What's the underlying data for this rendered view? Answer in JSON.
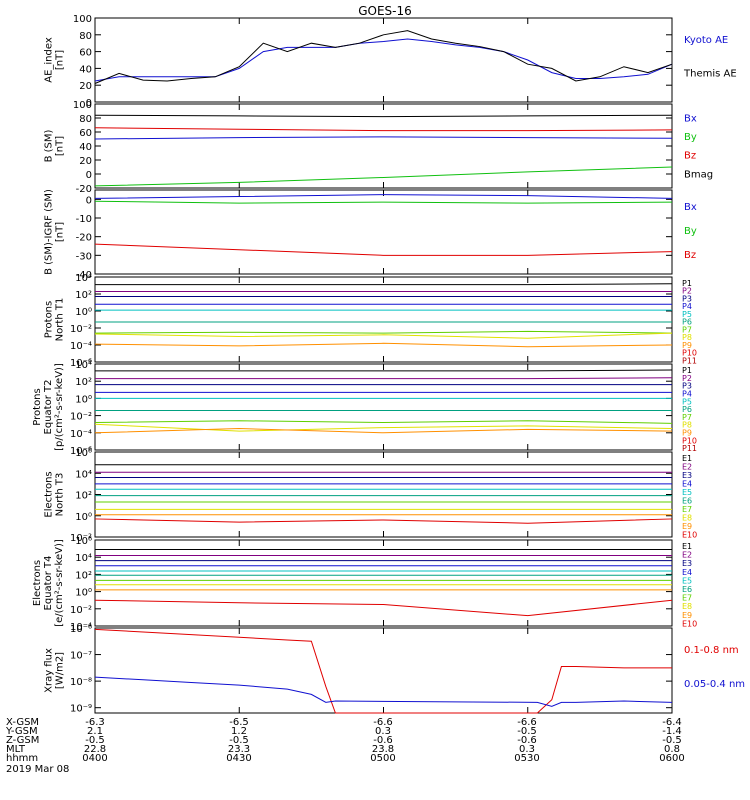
{
  "title": "GOES-16",
  "colors": {
    "black": "#000000",
    "blue": "#1010d0",
    "green": "#10c010",
    "red": "#e00000",
    "navy": "#000080",
    "cyan": "#00c0c0",
    "teal": "#00a080",
    "lime": "#60d000",
    "yellow": "#e0e000",
    "orange": "#ff9000",
    "darkred": "#b00000",
    "purple": "#800080"
  },
  "chart_data": [
    {
      "type": "line",
      "id": "ae",
      "ylabel": [
        "AE_index",
        "[nT]"
      ],
      "ylim": [
        0,
        100
      ],
      "log": false,
      "ticks": [
        0,
        20,
        40,
        60,
        80,
        100
      ],
      "tick_labels": [
        "0",
        "20",
        "40",
        "60",
        "80",
        "100"
      ],
      "x": [
        0,
        5,
        10,
        15,
        20,
        25,
        30,
        35,
        40,
        45,
        50,
        55,
        60,
        65,
        70,
        75,
        80,
        85,
        90,
        95,
        100,
        105,
        110,
        115,
        120
      ],
      "series": [
        {
          "name": "Kyoto AE",
          "color": "blue",
          "values": [
            25,
            30,
            30,
            30,
            30,
            30,
            40,
            60,
            65,
            65,
            65,
            70,
            72,
            75,
            72,
            68,
            65,
            60,
            50,
            35,
            28,
            28,
            30,
            33,
            45
          ]
        },
        {
          "name": "Themis AE",
          "color": "black",
          "values": [
            22,
            34,
            26,
            25,
            28,
            30,
            42,
            70,
            60,
            70,
            65,
            70,
            80,
            85,
            75,
            70,
            66,
            60,
            45,
            40,
            25,
            30,
            42,
            35,
            45
          ]
        }
      ]
    },
    {
      "type": "line",
      "id": "bsm",
      "ylabel": [
        "B (SM)",
        "[nT]"
      ],
      "ylim": [
        -20,
        100
      ],
      "log": false,
      "ticks": [
        -20,
        0,
        20,
        40,
        60,
        80,
        100
      ],
      "tick_labels": [
        "-20",
        "0",
        "20",
        "40",
        "60",
        "80",
        "100"
      ],
      "x": [
        0,
        30,
        60,
        90,
        120
      ],
      "series": [
        {
          "name": "Bx",
          "color": "blue",
          "values": [
            50,
            52,
            53,
            52,
            51
          ]
        },
        {
          "name": "By",
          "color": "green",
          "values": [
            -17,
            -12,
            -5,
            3,
            10
          ]
        },
        {
          "name": "Bz",
          "color": "red",
          "values": [
            66,
            64,
            62,
            62,
            63
          ]
        },
        {
          "name": "Bmag",
          "color": "black",
          "values": [
            84,
            83,
            82,
            83,
            84
          ]
        }
      ]
    },
    {
      "type": "line",
      "id": "bigrf",
      "ylabel": [
        "B (SM)-IGRF (SM)",
        "[nT]"
      ],
      "ylim": [
        -40,
        5
      ],
      "log": false,
      "ticks": [
        -40,
        -30,
        -20,
        -10,
        0
      ],
      "tick_labels": [
        "-40",
        "-30",
        "-20",
        "-10",
        "0"
      ],
      "x": [
        0,
        30,
        60,
        90,
        120
      ],
      "series": [
        {
          "name": "Bx",
          "color": "blue",
          "values": [
            0.5,
            1.5,
            2.5,
            2,
            0.5
          ]
        },
        {
          "name": "By",
          "color": "green",
          "values": [
            -1,
            -2,
            -1.5,
            -2,
            -1.5
          ]
        },
        {
          "name": "Bz",
          "color": "red",
          "values": [
            -24,
            -27,
            -30,
            -30,
            -28
          ]
        }
      ]
    },
    {
      "type": "line",
      "id": "pn",
      "ylabel": [
        "Protons",
        "North T1"
      ],
      "ylim": [
        -6,
        4
      ],
      "log": true,
      "ticks": [
        -6,
        -4,
        -2,
        0,
        2,
        4
      ],
      "tick_labels": [
        "10⁻⁶",
        "10⁻⁴",
        "10⁻²",
        "10⁰",
        "10²",
        "10⁴"
      ],
      "x": [
        0,
        30,
        60,
        90,
        120
      ],
      "series": [
        {
          "name": "P1",
          "color": "black",
          "values": [
            3.1,
            3.1,
            3.1,
            3.1,
            3.2
          ]
        },
        {
          "name": "P2",
          "color": "purple",
          "values": [
            2.3,
            2.3,
            2.3,
            2.3,
            2.3
          ]
        },
        {
          "name": "P3",
          "color": "navy",
          "values": [
            1.7,
            1.7,
            1.7,
            1.7,
            1.7
          ]
        },
        {
          "name": "P4",
          "color": "blue",
          "values": [
            0.8,
            0.8,
            0.8,
            0.8,
            0.8
          ]
        },
        {
          "name": "P5",
          "color": "cyan",
          "values": [
            0.1,
            0.1,
            0.1,
            0.1,
            0.1
          ]
        },
        {
          "name": "P6",
          "color": "teal",
          "values": [
            -1.3,
            -1.3,
            -1.3,
            -1.3,
            -1.3
          ]
        },
        {
          "name": "P7",
          "color": "lime",
          "values": [
            -2.6,
            -2.5,
            -2.6,
            -2.4,
            -2.6
          ]
        },
        {
          "name": "P8",
          "color": "yellow",
          "values": [
            -2.7,
            -3,
            -2.8,
            -3.2,
            -2.6
          ]
        },
        {
          "name": "P9",
          "color": "orange",
          "values": [
            -3.9,
            -4.1,
            -3.8,
            -4.2,
            -4.0
          ]
        }
      ],
      "legend": [
        "P1",
        "P2",
        "P3",
        "P4",
        "P5",
        "P6",
        "P7",
        "P8",
        "P9",
        "P10",
        "P11"
      ]
    },
    {
      "type": "line",
      "id": "pe",
      "ylabel": [
        "Protons",
        "Equator T2",
        "[p/(cm²-s-sr-keV)]"
      ],
      "ylim": [
        -6,
        4
      ],
      "log": true,
      "ticks": [
        -6,
        -4,
        -2,
        0,
        2,
        4
      ],
      "tick_labels": [
        "10⁻⁶",
        "10⁻⁴",
        "10⁻²",
        "10⁰",
        "10²",
        "10⁴"
      ],
      "x": [
        0,
        30,
        60,
        90,
        120
      ],
      "series": [
        {
          "name": "P1",
          "color": "black",
          "values": [
            3.2,
            3.2,
            3.2,
            3.2,
            3.3
          ]
        },
        {
          "name": "P2",
          "color": "purple",
          "values": [
            2.3,
            2.3,
            2.3,
            2.3,
            2.4
          ]
        },
        {
          "name": "P3",
          "color": "navy",
          "values": [
            1.6,
            1.6,
            1.6,
            1.6,
            1.6
          ]
        },
        {
          "name": "P4",
          "color": "blue",
          "values": [
            0.7,
            0.7,
            0.7,
            0.7,
            0.7
          ]
        },
        {
          "name": "P5",
          "color": "cyan",
          "values": [
            0.0,
            0.0,
            0.0,
            0.0,
            0.0
          ]
        },
        {
          "name": "P6",
          "color": "teal",
          "values": [
            -1.4,
            -1.4,
            -1.4,
            -1.4,
            -1.4
          ]
        },
        {
          "name": "P7",
          "color": "lime",
          "values": [
            -2.8,
            -2.6,
            -2.8,
            -2.6,
            -2.9
          ]
        },
        {
          "name": "P8",
          "color": "yellow",
          "values": [
            -3.0,
            -3.8,
            -3.4,
            -3.2,
            -3.5
          ]
        },
        {
          "name": "P9",
          "color": "orange",
          "values": [
            -4.0,
            -3.5,
            -4.0,
            -3.6,
            -3.8
          ]
        }
      ],
      "legend": [
        "P1",
        "P2",
        "P3",
        "P4",
        "P5",
        "P6",
        "P7",
        "P8",
        "P9",
        "P10",
        "P11"
      ]
    },
    {
      "type": "line",
      "id": "en",
      "ylabel": [
        "Electrons",
        "North T3"
      ],
      "ylim": [
        -2,
        6
      ],
      "log": true,
      "ticks": [
        -2,
        0,
        2,
        4,
        6
      ],
      "tick_labels": [
        "10⁻²",
        "10⁰",
        "10²",
        "10⁴",
        "10⁶"
      ],
      "x": [
        0,
        30,
        60,
        90,
        120
      ],
      "series": [
        {
          "name": "E1",
          "color": "black",
          "values": [
            4.8,
            4.8,
            4.8,
            4.8,
            4.8
          ]
        },
        {
          "name": "E2",
          "color": "purple",
          "values": [
            4.1,
            4.1,
            4.1,
            4.1,
            4.1
          ]
        },
        {
          "name": "E3",
          "color": "navy",
          "values": [
            3.6,
            3.6,
            3.6,
            3.6,
            3.6
          ]
        },
        {
          "name": "E4",
          "color": "blue",
          "values": [
            3.0,
            3.0,
            3.0,
            3.0,
            3.0
          ]
        },
        {
          "name": "E5",
          "color": "cyan",
          "values": [
            2.5,
            2.5,
            2.5,
            2.5,
            2.5
          ]
        },
        {
          "name": "E6",
          "color": "teal",
          "values": [
            1.9,
            1.9,
            1.9,
            1.9,
            1.9
          ]
        },
        {
          "name": "E7",
          "color": "lime",
          "values": [
            1.3,
            1.3,
            1.3,
            1.3,
            1.3
          ]
        },
        {
          "name": "E8",
          "color": "yellow",
          "values": [
            0.6,
            0.6,
            0.6,
            0.6,
            0.6
          ]
        },
        {
          "name": "E9",
          "color": "orange",
          "values": [
            0.1,
            0.1,
            0.1,
            0.1,
            0.1
          ]
        },
        {
          "name": "E10",
          "color": "red",
          "values": [
            -0.3,
            -0.6,
            -0.4,
            -0.7,
            -0.3
          ]
        }
      ],
      "legend": [
        "E1",
        "E2",
        "E3",
        "E4",
        "E5",
        "E6",
        "E7",
        "E8",
        "E9",
        "E10"
      ]
    },
    {
      "type": "line",
      "id": "ee",
      "ylabel": [
        "Electrons",
        "Equator T4",
        "[e/(cm²-s-sr-keV)]"
      ],
      "ylim": [
        -4,
        6
      ],
      "log": true,
      "ticks": [
        -4,
        -2,
        0,
        2,
        4,
        6
      ],
      "tick_labels": [
        "10⁻⁴",
        "10⁻²",
        "10⁰",
        "10²",
        "10⁴",
        "10⁶"
      ],
      "x": [
        0,
        30,
        60,
        90,
        120
      ],
      "series": [
        {
          "name": "E1",
          "color": "black",
          "values": [
            4.9,
            4.9,
            4.9,
            4.9,
            4.9
          ]
        },
        {
          "name": "E2",
          "color": "purple",
          "values": [
            4.2,
            4.2,
            4.2,
            4.2,
            4.2
          ]
        },
        {
          "name": "E3",
          "color": "navy",
          "values": [
            3.6,
            3.6,
            3.6,
            3.6,
            3.6
          ]
        },
        {
          "name": "E4",
          "color": "blue",
          "values": [
            3.0,
            3.0,
            3.0,
            3.0,
            3.0
          ]
        },
        {
          "name": "E5",
          "color": "cyan",
          "values": [
            2.4,
            2.4,
            2.4,
            2.4,
            2.4
          ]
        },
        {
          "name": "E6",
          "color": "teal",
          "values": [
            1.9,
            1.9,
            1.9,
            1.9,
            1.9
          ]
        },
        {
          "name": "E7",
          "color": "lime",
          "values": [
            1.3,
            1.3,
            1.3,
            1.3,
            1.3
          ]
        },
        {
          "name": "E8",
          "color": "yellow",
          "values": [
            0.8,
            0.8,
            0.8,
            0.8,
            0.8
          ]
        },
        {
          "name": "E9",
          "color": "orange",
          "values": [
            0.2,
            0.2,
            0.2,
            0.2,
            0.2
          ]
        },
        {
          "name": "E10",
          "color": "red",
          "values": [
            -1.0,
            -1.3,
            -1.5,
            -2.8,
            -1.0
          ]
        }
      ],
      "legend": [
        "E1",
        "E2",
        "E3",
        "E4",
        "E5",
        "E6",
        "E7",
        "E8",
        "E9",
        "E10"
      ]
    },
    {
      "type": "line",
      "id": "xray",
      "ylabel": [
        "Xray flux",
        "[W/m2]"
      ],
      "ylim": [
        -9.2,
        -6
      ],
      "log": true,
      "ticks": [
        -9,
        -8,
        -7,
        -6
      ],
      "tick_labels": [
        "10⁻⁹",
        "10⁻⁸",
        "10⁻⁷",
        "10⁻⁶"
      ],
      "x": [
        0,
        10,
        20,
        30,
        40,
        45,
        48,
        50,
        92,
        95,
        97,
        100,
        110,
        120
      ],
      "series": [
        {
          "name": "0.1-0.8 nm",
          "color": "red",
          "values": [
            -6.05,
            -6.15,
            -6.25,
            -6.35,
            -6.45,
            -6.5,
            -8.2,
            -9.3,
            -9.3,
            -8.7,
            -7.45,
            -7.45,
            -7.5,
            -7.5
          ]
        },
        {
          "name": "0.05-0.4 nm",
          "color": "blue",
          "values": [
            -7.85,
            -7.95,
            -8.05,
            -8.15,
            -8.3,
            -8.5,
            -8.8,
            -8.75,
            -8.8,
            -8.95,
            -8.8,
            -8.8,
            -8.75,
            -8.8
          ]
        }
      ]
    }
  ],
  "legend_labels": {
    "ae": [
      "Kyoto AE",
      "Themis AE"
    ],
    "bsm": [
      "Bx",
      "By",
      "Bz",
      "Bmag"
    ],
    "bigrf": [
      "Bx",
      "By",
      "Bz"
    ],
    "xray": [
      "0.1-0.8 nm",
      "0.05-0.4 nm"
    ]
  },
  "ephemeris": {
    "row_labels": [
      "X-GSM",
      "Y-GSM",
      "Z-GSM",
      "MLT",
      "hhmm"
    ],
    "date": "2019 Mar 08",
    "columns": [
      [
        "-6.3",
        "2.1",
        "-0.5",
        "22.8",
        "0400"
      ],
      [
        "-6.5",
        "1.2",
        "-0.5",
        "23.3",
        "0430"
      ],
      [
        "-6.6",
        "0.3",
        "-0.6",
        "23.8",
        "0500"
      ],
      [
        "-6.6",
        "-0.5",
        "-0.6",
        "0.3",
        "0530"
      ],
      [
        "-6.4",
        "-1.4",
        "-0.5",
        "0.8",
        "0600"
      ]
    ]
  }
}
